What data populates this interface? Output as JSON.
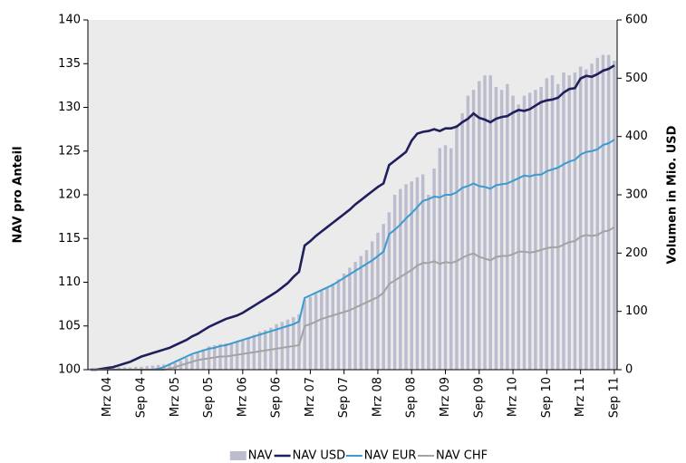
{
  "chart_data": {
    "type": "bar",
    "y_label": "NAV pro Anteil",
    "y2_label": "Volumen in Mio. USD",
    "categories": [
      null,
      null,
      null,
      "Mrz 04",
      null,
      null,
      null,
      null,
      null,
      "Sep 04",
      null,
      null,
      null,
      null,
      null,
      "Mrz 05",
      null,
      null,
      null,
      null,
      null,
      "Sep 05",
      null,
      null,
      null,
      null,
      null,
      "Mrz 06",
      null,
      null,
      null,
      null,
      null,
      "Sep 06",
      null,
      null,
      null,
      null,
      null,
      "Mrz 07",
      null,
      null,
      null,
      null,
      null,
      "Sep 07",
      null,
      null,
      null,
      null,
      null,
      "Mrz 08",
      null,
      null,
      null,
      null,
      null,
      "Sep 08",
      null,
      null,
      null,
      null,
      null,
      "Mrz 09",
      null,
      null,
      null,
      null,
      null,
      "Sep 09",
      null,
      null,
      null,
      null,
      null,
      "Mrz 10",
      null,
      null,
      null,
      null,
      null,
      "Sep 10",
      null,
      null,
      null,
      null,
      null,
      "Mrz 11",
      null,
      null,
      null,
      null,
      null,
      "Sep 11"
    ],
    "ylim": [
      100,
      140
    ],
    "yticks": [
      100,
      105,
      110,
      115,
      120,
      125,
      130,
      135,
      140
    ],
    "y2lim": [
      0,
      600
    ],
    "y2ticks": [
      0,
      100,
      200,
      300,
      400,
      500,
      600
    ],
    "legend": "bottom",
    "series": [
      {
        "name": "NAV",
        "type": "bar",
        "axis": "y2",
        "color": "#bcbccf",
        "values": [
          2,
          2,
          3,
          3,
          3,
          4,
          4,
          4,
          5,
          5,
          6,
          7,
          8,
          9,
          10,
          11,
          15,
          20,
          25,
          30,
          35,
          40,
          42,
          44,
          45,
          46,
          48,
          50,
          55,
          60,
          65,
          68,
          72,
          78,
          82,
          86,
          90,
          95,
          120,
          125,
          130,
          135,
          140,
          148,
          155,
          165,
          175,
          185,
          195,
          205,
          220,
          235,
          250,
          270,
          300,
          310,
          318,
          323,
          330,
          335,
          300,
          345,
          380,
          385,
          380,
          420,
          440,
          470,
          480,
          495,
          505,
          505,
          485,
          480,
          490,
          470,
          455,
          470,
          475,
          480,
          485,
          500,
          505,
          490,
          510,
          505,
          510,
          520,
          515,
          525,
          535,
          540,
          540,
          530
        ]
      },
      {
        "name": "NAV USD",
        "type": "line",
        "color": "#1f1f5e",
        "values": [
          100.0,
          100.0,
          100.1,
          100.2,
          100.3,
          100.5,
          100.7,
          100.9,
          101.2,
          101.5,
          101.7,
          101.9,
          102.1,
          102.3,
          102.5,
          102.8,
          103.1,
          103.4,
          103.8,
          104.1,
          104.5,
          104.9,
          105.2,
          105.5,
          105.8,
          106.0,
          106.2,
          106.5,
          106.9,
          107.3,
          107.7,
          108.1,
          108.5,
          108.9,
          109.4,
          109.9,
          110.6,
          111.2,
          114.2,
          114.7,
          115.3,
          115.8,
          116.3,
          116.8,
          117.3,
          117.8,
          118.3,
          118.9,
          119.4,
          119.9,
          120.4,
          120.9,
          121.3,
          123.4,
          123.9,
          124.4,
          124.9,
          126.2,
          127.0,
          127.2,
          127.3,
          127.5,
          127.3,
          127.6,
          127.6,
          127.8,
          128.3,
          128.7,
          129.3,
          128.8,
          128.6,
          128.3,
          128.7,
          128.9,
          129.0,
          129.4,
          129.7,
          129.6,
          129.8,
          130.2,
          130.6,
          130.8,
          130.9,
          131.1,
          131.7,
          132.1,
          132.2,
          133.3,
          133.6,
          133.5,
          133.8,
          134.2,
          134.4,
          134.8
        ]
      },
      {
        "name": "NAV EUR",
        "type": "line",
        "color": "#3b9ad0",
        "values": [
          100.0,
          100.0,
          100.0,
          100.0,
          100.0,
          100.0,
          100.0,
          100.0,
          100.0,
          100.0,
          100.0,
          100.0,
          100.1,
          100.3,
          100.6,
          100.9,
          101.2,
          101.5,
          101.8,
          102.0,
          102.2,
          102.4,
          102.5,
          102.7,
          102.8,
          103.0,
          103.2,
          103.4,
          103.6,
          103.8,
          104.0,
          104.2,
          104.4,
          104.6,
          104.8,
          105.0,
          105.2,
          105.5,
          108.2,
          108.5,
          108.8,
          109.1,
          109.4,
          109.7,
          110.1,
          110.5,
          110.9,
          111.3,
          111.7,
          112.1,
          112.5,
          113.0,
          113.5,
          115.5,
          116.0,
          116.6,
          117.3,
          117.9,
          118.6,
          119.3,
          119.5,
          119.8,
          119.7,
          120.0,
          120.0,
          120.3,
          120.8,
          121.0,
          121.3,
          121.0,
          120.9,
          120.7,
          121.1,
          121.2,
          121.3,
          121.6,
          121.9,
          122.2,
          122.1,
          122.3,
          122.3,
          122.7,
          122.9,
          123.1,
          123.5,
          123.8,
          124.0,
          124.6,
          124.9,
          125.0,
          125.2,
          125.7,
          125.9,
          126.3
        ]
      },
      {
        "name": "NAV CHF",
        "type": "line",
        "color": "#a3a3a3",
        "values": [
          100.0,
          100.0,
          100.0,
          100.0,
          100.0,
          100.0,
          100.0,
          100.0,
          100.0,
          100.0,
          100.0,
          100.0,
          100.0,
          100.0,
          100.1,
          100.3,
          100.5,
          100.7,
          100.9,
          101.1,
          101.2,
          101.3,
          101.4,
          101.5,
          101.5,
          101.6,
          101.7,
          101.8,
          101.9,
          102.0,
          102.1,
          102.2,
          102.3,
          102.4,
          102.5,
          102.6,
          102.7,
          102.8,
          105.0,
          105.2,
          105.5,
          105.8,
          106.0,
          106.2,
          106.4,
          106.6,
          106.8,
          107.1,
          107.4,
          107.7,
          108.0,
          108.3,
          108.8,
          109.8,
          110.2,
          110.6,
          111.0,
          111.4,
          111.9,
          112.2,
          112.2,
          112.4,
          112.1,
          112.3,
          112.2,
          112.4,
          112.8,
          113.1,
          113.3,
          112.9,
          112.7,
          112.5,
          112.9,
          113.0,
          113.0,
          113.2,
          113.5,
          113.5,
          113.4,
          113.5,
          113.7,
          113.9,
          114.0,
          114.0,
          114.3,
          114.6,
          114.7,
          115.2,
          115.4,
          115.3,
          115.4,
          115.8,
          115.9,
          116.3
        ]
      }
    ]
  }
}
